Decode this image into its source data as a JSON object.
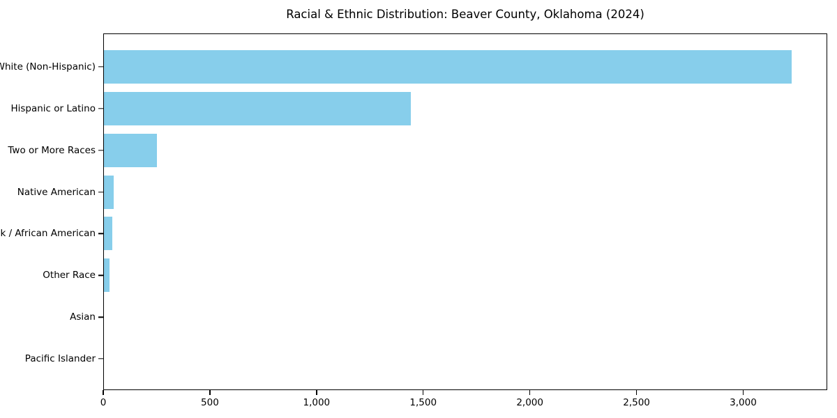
{
  "chart_data": {
    "type": "bar",
    "orientation": "horizontal",
    "title": "Racial & Ethnic Distribution: Beaver County, Oklahoma (2024)",
    "categories": [
      "White (Non-Hispanic)",
      "Hispanic or Latino",
      "Two or More Races",
      "Native American",
      "Black / African American",
      "Other Race",
      "Asian",
      "Pacific Islander"
    ],
    "values": [
      3230,
      1440,
      250,
      45,
      40,
      25,
      0,
      0
    ],
    "xlabel": "",
    "ylabel": "",
    "xlim": [
      0,
      3394
    ],
    "xtick_values": [
      0,
      500,
      1000,
      1500,
      2000,
      2500,
      3000
    ],
    "xtick_labels": [
      "0",
      "500",
      "1,000",
      "1,500",
      "2,000",
      "2,500",
      "3,000"
    ],
    "bar_color": "#87CEEB",
    "axis_color": "#000000",
    "background_color": "#ffffff",
    "grid": false,
    "legend": null
  }
}
